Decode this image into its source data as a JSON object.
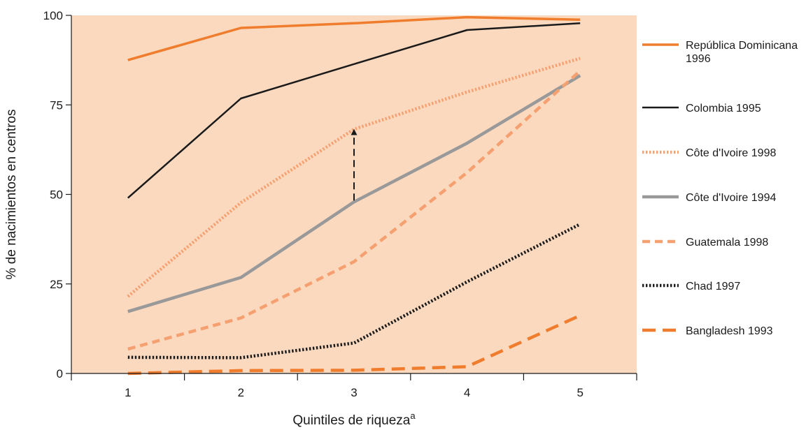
{
  "chart_data": {
    "type": "line",
    "title": "",
    "xlabel": "Quintiles de riqueza",
    "xlabel_superscript": "a",
    "ylabel": "% de nacimientos en centros",
    "x": [
      1,
      2,
      3,
      4,
      5
    ],
    "x_tick_labels": [
      "1",
      "2",
      "3",
      "4",
      "5"
    ],
    "y_ticks": [
      0,
      25,
      50,
      75,
      100
    ],
    "y_tick_labels": [
      "0",
      "25",
      "50",
      "75",
      "100"
    ],
    "ylim": [
      0,
      100
    ],
    "xlim": [
      0.5,
      5.5
    ],
    "grid": false,
    "legend_position": "right",
    "plot_background": "#fbd9bf",
    "series": [
      {
        "name": "República Dominicana 1996",
        "values": [
          87.5,
          96.5,
          97.8,
          99.5,
          98.8
        ],
        "color": "#ef7d2d",
        "dash": "solid",
        "width": 3.5
      },
      {
        "name": "Colombia 1995",
        "values": [
          49,
          76.8,
          86.4,
          95.9,
          97.8
        ],
        "color": "#1a1a1a",
        "dash": "solid",
        "width": 2.5
      },
      {
        "name": "Côte d'Ivoire 1998",
        "values": [
          21.5,
          47.7,
          68.2,
          78.6,
          88
        ],
        "color": "#f5a070",
        "dash": "dotted",
        "width": 4.5
      },
      {
        "name": "Côte d'Ivoire 1994",
        "values": [
          17.3,
          26.8,
          47.9,
          64.3,
          83.2
        ],
        "color": "#999999",
        "dash": "solid",
        "width": 4.5
      },
      {
        "name": "Guatemala 1998",
        "values": [
          6.8,
          15.5,
          31.2,
          56.1,
          84.5
        ],
        "color": "#f5a070",
        "dash": "dashed",
        "width": 4.5
      },
      {
        "name": "Chad 1997",
        "values": [
          4.5,
          4.4,
          8.5,
          25.6,
          41.7
        ],
        "color": "#1a1a1a",
        "dash": "dotted",
        "width": 4.5
      },
      {
        "name": "Bangladesh 1993",
        "values": [
          0,
          0.8,
          0.9,
          1.9,
          16.2
        ],
        "color": "#ef7d2d",
        "dash": "longdash",
        "width": 4.5
      }
    ],
    "annotation": {
      "type": "arrow",
      "x": 3,
      "from": 47.9,
      "to": 68.2,
      "style": "dashed",
      "color": "#1a1a1a"
    }
  }
}
